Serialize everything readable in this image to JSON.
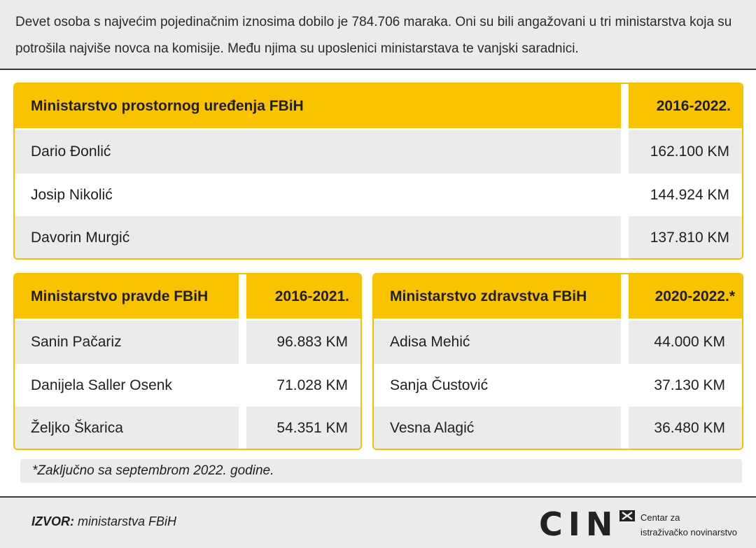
{
  "intro_text": "Devet osoba s najvećim pojedinačnim iznosima dobilo je 784.706 maraka. Oni su bili angažovani u tri ministarstva koja su potrošila najviše novca na komisije. Među njima su uposlenici ministarstava te vanjski saradnici.",
  "tables": [
    {
      "title": "Ministarstvo prostornog uređenja FBiH",
      "period": "2016-2022.",
      "rows": [
        {
          "name": "Dario Đonlić",
          "amount": "162.100 KM"
        },
        {
          "name": "Josip Nikolić",
          "amount": "144.924 KM"
        },
        {
          "name": "Davorin Murgić",
          "amount": "137.810 KM"
        }
      ]
    },
    {
      "title": "Ministarstvo pravde FBiH",
      "period": "2016-2021.",
      "rows": [
        {
          "name": "Sanin Pačariz",
          "amount": "96.883 KM"
        },
        {
          "name": "Danijela Saller Osenk",
          "amount": "71.028 KM"
        },
        {
          "name": "Željko Škarica",
          "amount": "54.351 KM"
        }
      ]
    },
    {
      "title": "Ministarstvo zdravstva FBiH",
      "period": "2020-2022.*",
      "rows": [
        {
          "name": "Adisa Mehić",
          "amount": "44.000 KM"
        },
        {
          "name": "Sanja Čustović",
          "amount": "37.130 KM"
        },
        {
          "name": "Vesna Alagić",
          "amount": "36.480 KM"
        }
      ]
    }
  ],
  "footnote": "*Zaključno sa septembrom 2022. godine.",
  "source": {
    "label": "IZVOR:",
    "text": " ministarstva FBiH"
  },
  "logo": {
    "text": "CIN",
    "tagline_1": "Centar za",
    "tagline_2": "istraživačko novinarstvo",
    "icon": "cin-x-mark-icon"
  },
  "colors": {
    "accent": "#f9c300",
    "row_shade": "#ebebeb",
    "border": "#f6c100"
  }
}
